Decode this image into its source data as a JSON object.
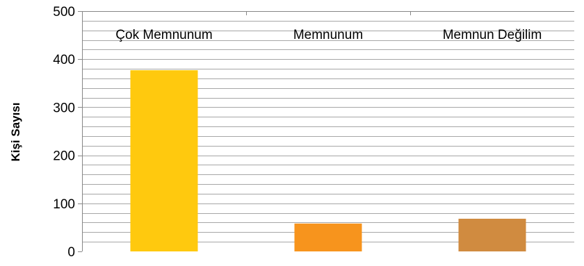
{
  "chart_data": {
    "type": "bar",
    "categories": [
      "Çok Memnunum",
      "Memnunum",
      "Memnun Değilim"
    ],
    "values": [
      377,
      58,
      68
    ],
    "bar_colors": [
      "#FFC90E",
      "#F7941D",
      "#D08B40"
    ],
    "title": "",
    "xlabel": "",
    "ylabel": "Kişi Sayısı",
    "ylim": [
      0,
      500
    ],
    "yticks": [
      "0",
      "100",
      "200",
      "300",
      "400",
      "500"
    ],
    "ytick_values": [
      0,
      100,
      200,
      300,
      400,
      500
    ],
    "minor_grid_step": 20,
    "category_labels_position": "top",
    "grid": true,
    "legend": "none",
    "gridline_color": "#A6A6A6",
    "axis_color": "#868686"
  }
}
